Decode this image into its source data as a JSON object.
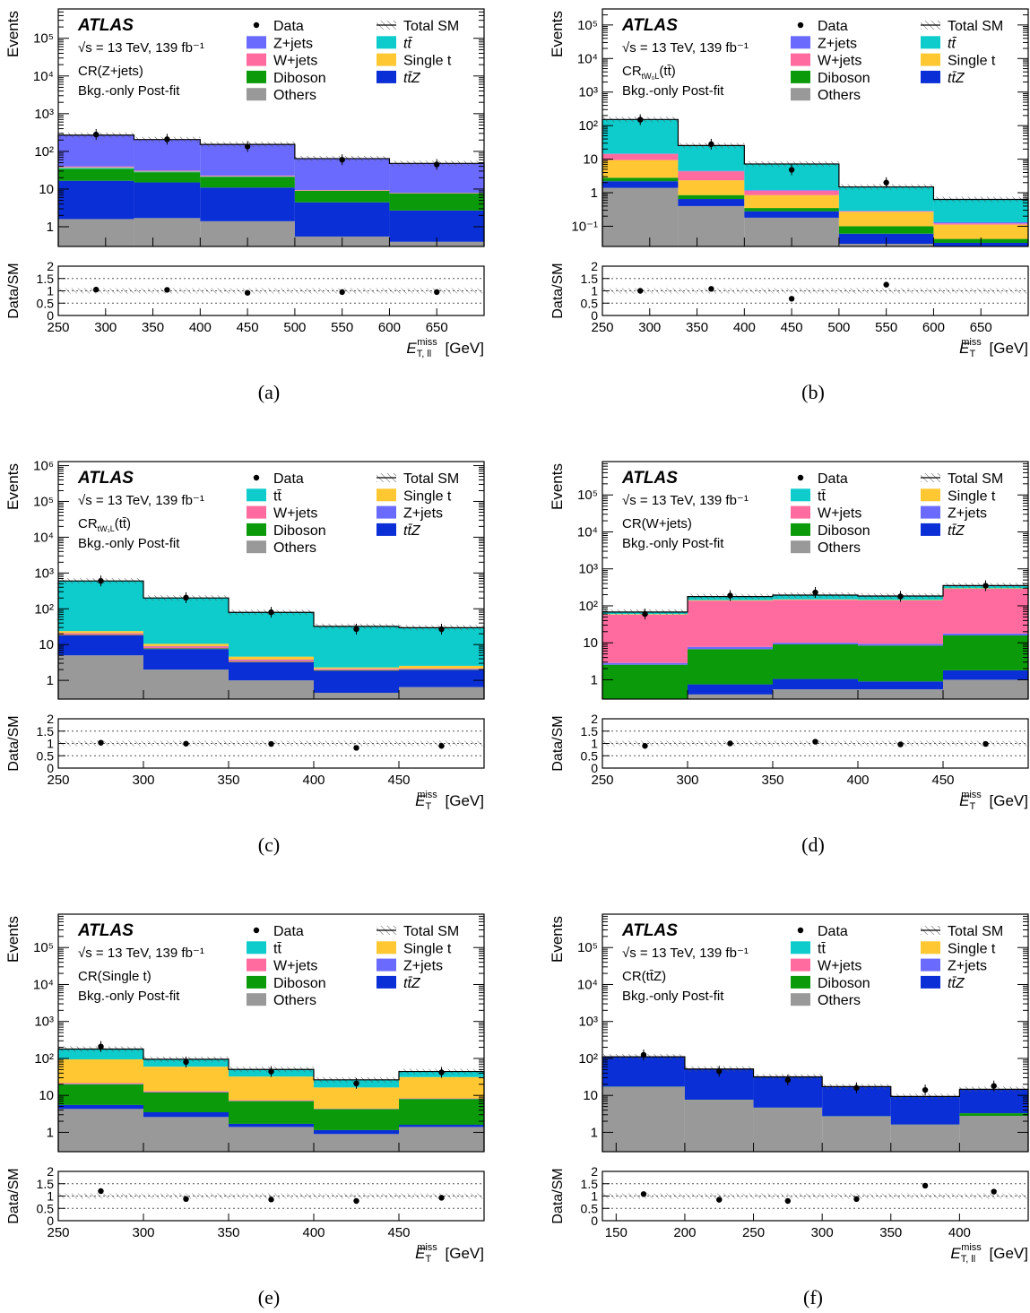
{
  "common": {
    "experiment": "ATLAS",
    "energy_line": "√s = 13 TeV, 139 fb⁻¹",
    "fit_label": "Bkg.-only Post-fit",
    "y_title": "Events",
    "ratio_title": "Data/SM",
    "x_unit": "[GeV]",
    "ratio_ticks": [
      "2",
      "1.5",
      "1",
      "0.5",
      "0"
    ],
    "colors": {
      "ttbar": "#0ecccc",
      "single_t": "#ffc832",
      "wjets": "#ff6b9e",
      "zjets": "#6a6aff",
      "diboson": "#0a9a0a",
      "others": "#999999",
      "ttz": "#0a2fd6",
      "data": "#000000"
    }
  },
  "captions": [
    "(a)",
    "(b)",
    "(c)",
    "(d)",
    "(e)",
    "(f)"
  ],
  "chart_data": [
    {
      "id": "a",
      "type": "area",
      "cr": "CR(Z+jets)",
      "xlabel": "E_T,ll^miss [GeV]",
      "legend_left": [
        "Data",
        "Z+jets",
        "W+jets",
        "Diboson",
        "Others"
      ],
      "legend_right": [
        "Total SM",
        "tt̄",
        "Single t",
        "tt̄Z"
      ],
      "xlim": [
        250,
        700
      ],
      "ylim": [
        0.3,
        600000
      ],
      "xticks": [
        250,
        300,
        350,
        400,
        450,
        500,
        550,
        600,
        650
      ],
      "ytick_labels": [
        "1",
        "10",
        "10²",
        "10³",
        "10⁴",
        "10⁵"
      ],
      "bins": [
        250,
        330,
        400,
        500,
        600,
        700
      ],
      "stack": [
        {
          "name": "Others",
          "key": "others",
          "values": [
            1.6,
            1.7,
            1.4,
            0.55,
            0.4
          ]
        },
        {
          "name": "tt̄Z",
          "key": "ttz",
          "values": [
            15,
            13.3,
            9.6,
            3.9,
            2.3
          ]
        },
        {
          "name": "Diboson",
          "key": "diboson",
          "values": [
            18,
            13,
            10,
            4.5,
            5
          ]
        },
        {
          "name": "tt̄",
          "key": "ttbar",
          "values": [
            2,
            1,
            0.5,
            0.1,
            0.05
          ]
        },
        {
          "name": "Single t",
          "key": "single_t",
          "values": [
            1,
            0.5,
            0.3,
            0.1,
            0.05
          ]
        },
        {
          "name": "W+jets",
          "key": "wjets",
          "values": [
            2,
            1.5,
            1,
            0.3,
            0.2
          ]
        },
        {
          "name": "Z+jets",
          "key": "zjets",
          "values": [
            230,
            175,
            130,
            55,
            40
          ]
        }
      ],
      "data": [
        {
          "x": 290,
          "y": 280,
          "ratio": 1.05
        },
        {
          "x": 365,
          "y": 210,
          "ratio": 1.04
        },
        {
          "x": 450,
          "y": 135,
          "ratio": 0.92
        },
        {
          "x": 550,
          "y": 60,
          "ratio": 0.95
        },
        {
          "x": 650,
          "y": 45,
          "ratio": 0.95
        }
      ]
    },
    {
      "id": "b",
      "type": "area",
      "cr": "CR",
      "cr_sub": "tW₀L",
      "cr_suffix": "(tt̄)",
      "xlabel": "E_T^miss [GeV]",
      "legend_left": [
        "Data",
        "Z+jets",
        "W+jets",
        "Diboson",
        "Others"
      ],
      "legend_right": [
        "Total SM",
        "tt̄",
        "Single t",
        "tt̄Z"
      ],
      "xlim": [
        250,
        700
      ],
      "ylim": [
        0.025,
        300000
      ],
      "xticks": [
        250,
        300,
        350,
        400,
        450,
        500,
        550,
        600,
        650
      ],
      "ytick_labels": [
        "10⁻¹",
        "1",
        "10",
        "10²",
        "10³",
        "10⁴",
        "10⁵"
      ],
      "bins": [
        250,
        330,
        400,
        500,
        600,
        700
      ],
      "stack": [
        {
          "name": "Others",
          "key": "others",
          "values": [
            1.4,
            0.4,
            0.18,
            0.03,
            0.02
          ]
        },
        {
          "name": "tt̄Z",
          "key": "ttz",
          "values": [
            0.8,
            0.25,
            0.1,
            0.03,
            0.012
          ]
        },
        {
          "name": "Diboson",
          "key": "diboson",
          "values": [
            0.6,
            0.2,
            0.07,
            0.04,
            0.01
          ]
        },
        {
          "name": "Single t",
          "key": "single_t",
          "values": [
            6.6,
            1.5,
            0.5,
            0.17,
            0.07
          ]
        },
        {
          "name": "W+jets",
          "key": "wjets",
          "values": [
            5,
            2,
            0.3,
            0.01,
            0.01
          ]
        },
        {
          "name": "Z+jets",
          "key": "zjets",
          "values": [
            0.2,
            0.1,
            0.05,
            0.01,
            0.01
          ]
        },
        {
          "name": "tt̄",
          "key": "ttbar",
          "values": [
            138,
            21,
            6,
            1.2,
            0.5
          ]
        }
      ],
      "data": [
        {
          "x": 290,
          "y": 150,
          "ratio": 1.0
        },
        {
          "x": 365,
          "y": 28,
          "ratio": 1.08
        },
        {
          "x": 450,
          "y": 4.8,
          "ratio": 0.68
        },
        {
          "x": 550,
          "y": 2.0,
          "ratio": 1.25
        },
        {
          "x": 650,
          "y": null,
          "ratio": null
        }
      ]
    },
    {
      "id": "c",
      "type": "area",
      "cr": "CR",
      "cr_sub": "tW₁L",
      "cr_suffix": "(tt̄)",
      "xlabel": "E_T^miss [GeV]",
      "legend_left": [
        "Data",
        "tt̄",
        "W+jets",
        "Diboson",
        "Others"
      ],
      "legend_right": [
        "Total SM",
        "Single t",
        "Z+jets",
        "tt̄Z"
      ],
      "xlim": [
        250,
        500
      ],
      "ylim": [
        0.3,
        1300000
      ],
      "xticks": [
        250,
        300,
        350,
        400,
        450
      ],
      "ytick_labels": [
        "1",
        "10",
        "10²",
        "10³",
        "10⁴",
        "10⁵",
        "10⁶"
      ],
      "bins": [
        250,
        300,
        350,
        400,
        450,
        500
      ],
      "stack": [
        {
          "name": "Others",
          "key": "others",
          "values": [
            5,
            2,
            1,
            0.45,
            0.65
          ]
        },
        {
          "name": "tt̄Z",
          "key": "ttz",
          "values": [
            13,
            5.5,
            2.2,
            1.4,
            1.3
          ]
        },
        {
          "name": "Diboson",
          "key": "diboson",
          "values": [
            0.5,
            0.3,
            0.1,
            0.05,
            0.05
          ]
        },
        {
          "name": "W+jets",
          "key": "wjets",
          "values": [
            2,
            1,
            0.4,
            0.15,
            0.1
          ]
        },
        {
          "name": "Z+jets",
          "key": "zjets",
          "values": [
            0.3,
            0.2,
            0.1,
            0.05,
            0.05
          ]
        },
        {
          "name": "Single t",
          "key": "single_t",
          "values": [
            3,
            1.5,
            0.8,
            0.2,
            0.4
          ]
        },
        {
          "name": "tt̄",
          "key": "ttbar",
          "values": [
            576,
            190,
            75,
            30,
            27
          ]
        }
      ],
      "data": [
        {
          "x": 275,
          "y": 600,
          "ratio": 1.03
        },
        {
          "x": 325,
          "y": 205,
          "ratio": 0.99
        },
        {
          "x": 375,
          "y": 80,
          "ratio": 0.98
        },
        {
          "x": 425,
          "y": 27,
          "ratio": 0.82
        },
        {
          "x": 475,
          "y": 27,
          "ratio": 0.9
        }
      ]
    },
    {
      "id": "d",
      "type": "area",
      "cr": "CR(W+jets)",
      "xlabel": "E_T^miss [GeV]",
      "legend_left": [
        "Data",
        "tt̄",
        "W+jets",
        "Diboson",
        "Others"
      ],
      "legend_right": [
        "Total SM",
        "Single t",
        "Z+jets",
        "tt̄Z"
      ],
      "xlim": [
        250,
        500
      ],
      "ylim": [
        0.3,
        800000
      ],
      "xticks": [
        250,
        300,
        350,
        400,
        450
      ],
      "ytick_labels": [
        "1",
        "10",
        "10²",
        "10³",
        "10⁴",
        "10⁵"
      ],
      "bins": [
        250,
        300,
        350,
        400,
        450,
        500
      ],
      "stack": [
        {
          "name": "Others",
          "key": "others",
          "values": [
            0.2,
            0.4,
            0.55,
            0.55,
            1.0
          ]
        },
        {
          "name": "tt̄Z",
          "key": "ttz",
          "values": [
            0.05,
            0.35,
            0.5,
            0.35,
            0.8
          ]
        },
        {
          "name": "Diboson",
          "key": "diboson",
          "values": [
            2.3,
            6,
            8,
            7.5,
            14
          ]
        },
        {
          "name": "Z+jets",
          "key": "zjets",
          "values": [
            0.3,
            1,
            1,
            1,
            2
          ]
        },
        {
          "name": "W+jets",
          "key": "wjets",
          "values": [
            55,
            130,
            135,
            130,
            270
          ]
        },
        {
          "name": "Single t",
          "key": "single_t",
          "values": [
            2,
            5,
            5,
            5,
            10
          ]
        },
        {
          "name": "tt̄",
          "key": "ttbar",
          "values": [
            8,
            35,
            45,
            40,
            55
          ]
        }
      ],
      "data": [
        {
          "x": 275,
          "y": 60,
          "ratio": 0.9
        },
        {
          "x": 325,
          "y": 190,
          "ratio": 1.0
        },
        {
          "x": 375,
          "y": 230,
          "ratio": 1.07
        },
        {
          "x": 425,
          "y": 180,
          "ratio": 0.96
        },
        {
          "x": 475,
          "y": 350,
          "ratio": 0.98
        }
      ]
    },
    {
      "id": "e",
      "type": "area",
      "cr": "CR(Single t)",
      "xlabel": "E_T^miss [GeV]",
      "legend_left": [
        "Data",
        "tt̄",
        "W+jets",
        "Diboson",
        "Others"
      ],
      "legend_right": [
        "Total SM",
        "Single t",
        "Z+jets",
        "tt̄Z"
      ],
      "xlim": [
        250,
        500
      ],
      "ylim": [
        0.3,
        800000
      ],
      "xticks": [
        250,
        300,
        350,
        400,
        450
      ],
      "ytick_labels": [
        "1",
        "10",
        "10²",
        "10³",
        "10⁴",
        "10⁵"
      ],
      "bins": [
        250,
        300,
        350,
        400,
        450,
        500
      ],
      "stack": [
        {
          "name": "Others",
          "key": "others",
          "values": [
            4.3,
            2.6,
            1.4,
            0.9,
            1.4
          ]
        },
        {
          "name": "tt̄Z",
          "key": "ttz",
          "values": [
            1.2,
            0.9,
            0.3,
            0.25,
            0.2
          ]
        },
        {
          "name": "Diboson",
          "key": "diboson",
          "values": [
            14.5,
            8.5,
            5.3,
            3.1,
            6.4
          ]
        },
        {
          "name": "Z+jets",
          "key": "zjets",
          "values": [
            0.5,
            0.3,
            0.1,
            0.05,
            0.1
          ]
        },
        {
          "name": "W+jets",
          "key": "wjets",
          "values": [
            1,
            0.6,
            0.3,
            0.1,
            0.2
          ]
        },
        {
          "name": "Single t",
          "key": "single_t",
          "values": [
            73,
            47,
            25,
            12,
            23
          ]
        },
        {
          "name": "tt̄",
          "key": "ttbar",
          "values": [
            85,
            35,
            18,
            10,
            13
          ]
        }
      ],
      "data": [
        {
          "x": 275,
          "y": 210,
          "ratio": 1.2
        },
        {
          "x": 325,
          "y": 80,
          "ratio": 0.88
        },
        {
          "x": 375,
          "y": 44,
          "ratio": 0.86
        },
        {
          "x": 425,
          "y": 21,
          "ratio": 0.8
        },
        {
          "x": 475,
          "y": 42,
          "ratio": 0.93
        }
      ]
    },
    {
      "id": "f",
      "type": "area",
      "cr": "CR(tt̄Z)",
      "xlabel": "E_T,ll^miss [GeV]",
      "legend_left": [
        "Data",
        "tt̄",
        "W+jets",
        "Diboson",
        "Others"
      ],
      "legend_right": [
        "Total SM",
        "Single t",
        "Z+jets",
        "tt̄Z"
      ],
      "xlim": [
        140,
        450
      ],
      "ylim": [
        0.3,
        800000
      ],
      "xticks": [
        150,
        200,
        250,
        300,
        350,
        400
      ],
      "ytick_labels": [
        "1",
        "10",
        "10²",
        "10³",
        "10⁴",
        "10⁵"
      ],
      "bins": [
        140,
        200,
        250,
        300,
        350,
        400,
        450
      ],
      "stack": [
        {
          "name": "Others",
          "key": "others",
          "values": [
            17,
            7.5,
            4.6,
            2.7,
            1.6,
            2.8
          ]
        },
        {
          "name": "Diboson",
          "key": "diboson",
          "values": [
            0.2,
            0.1,
            0.05,
            0.03,
            0.02,
            0.5
          ]
        },
        {
          "name": "W+jets",
          "key": "wjets",
          "values": [
            0.1,
            0.05,
            0.02,
            0.01,
            0.01,
            0.01
          ]
        },
        {
          "name": "tt̄Z",
          "key": "ttz",
          "values": [
            93,
            44,
            27,
            14.5,
            7.7,
            11
          ]
        },
        {
          "name": "tt̄",
          "key": "ttbar",
          "values": [
            0.5,
            0.2,
            0.1,
            0.05,
            0.02,
            0.3
          ]
        }
      ],
      "data": [
        {
          "x": 170,
          "y": 125,
          "ratio": 1.08
        },
        {
          "x": 225,
          "y": 45,
          "ratio": 0.85
        },
        {
          "x": 275,
          "y": 26,
          "ratio": 0.8
        },
        {
          "x": 325,
          "y": 16,
          "ratio": 0.88
        },
        {
          "x": 375,
          "y": 14,
          "ratio": 1.42
        },
        {
          "x": 425,
          "y": 18,
          "ratio": 1.18
        }
      ]
    }
  ]
}
